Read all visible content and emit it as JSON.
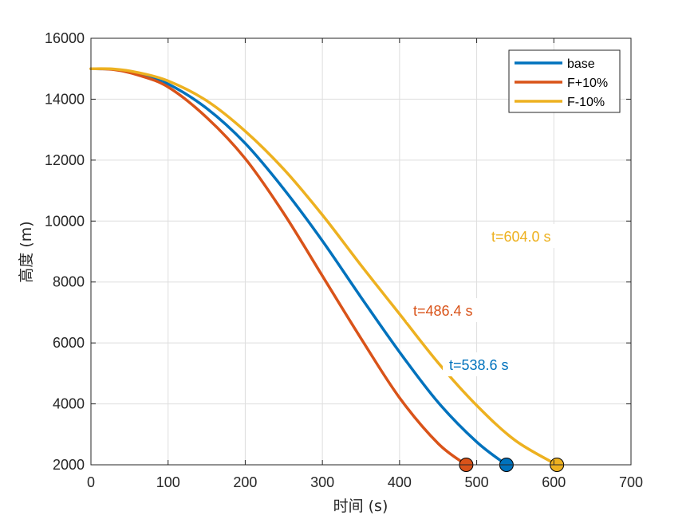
{
  "chart_data": {
    "type": "line",
    "xlabel": "时间 (s)",
    "ylabel": "高度 (m)",
    "xlim": [
      0,
      700
    ],
    "ylim": [
      2000,
      16000
    ],
    "xticks": [
      0,
      100,
      200,
      300,
      400,
      500,
      600,
      700
    ],
    "yticks": [
      2000,
      4000,
      6000,
      8000,
      10000,
      12000,
      14000,
      16000
    ],
    "grid": true,
    "legend_position": "top-right",
    "series": [
      {
        "name": "base",
        "color": "#0072BD",
        "points": [
          [
            0,
            15000
          ],
          [
            30,
            14980
          ],
          [
            60,
            14850
          ],
          [
            100,
            14500
          ],
          [
            150,
            13700
          ],
          [
            200,
            12550
          ],
          [
            250,
            11050
          ],
          [
            300,
            9350
          ],
          [
            350,
            7500
          ],
          [
            400,
            5700
          ],
          [
            450,
            4050
          ],
          [
            500,
            2750
          ],
          [
            538.6,
            2000
          ]
        ],
        "end_label": "t=538.6 s",
        "end_value": [
          538.6,
          2000
        ]
      },
      {
        "name": "F+10%",
        "color": "#D95319",
        "points": [
          [
            0,
            15000
          ],
          [
            30,
            14970
          ],
          [
            60,
            14800
          ],
          [
            100,
            14400
          ],
          [
            150,
            13400
          ],
          [
            200,
            12050
          ],
          [
            250,
            10250
          ],
          [
            300,
            8200
          ],
          [
            350,
            6150
          ],
          [
            400,
            4200
          ],
          [
            450,
            2700
          ],
          [
            486.4,
            2000
          ]
        ],
        "end_label": "t=486.4 s",
        "end_value": [
          486.4,
          2000
        ]
      },
      {
        "name": "F-10%",
        "color": "#EDB120",
        "points": [
          [
            0,
            15000
          ],
          [
            30,
            14990
          ],
          [
            60,
            14880
          ],
          [
            100,
            14600
          ],
          [
            150,
            13950
          ],
          [
            200,
            12950
          ],
          [
            250,
            11700
          ],
          [
            300,
            10200
          ],
          [
            350,
            8550
          ],
          [
            400,
            6950
          ],
          [
            450,
            5350
          ],
          [
            500,
            3950
          ],
          [
            550,
            2800
          ],
          [
            604.0,
            2000
          ]
        ],
        "end_label": "t=604.0 s",
        "end_value": [
          604.0,
          2000
        ]
      }
    ]
  }
}
